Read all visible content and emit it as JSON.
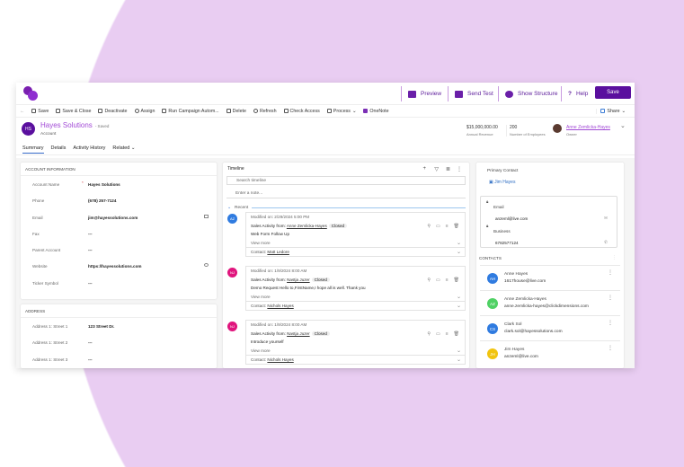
{
  "topbar": {
    "preview": "Preview",
    "send_test": "Send Test",
    "show_structure": "Show Structure",
    "help": "Help",
    "save": "Save"
  },
  "commands": [
    "Save",
    "Save & Close",
    "Deactivate",
    "Assign",
    "Run Campaign Autom...",
    "Delete",
    "Refresh",
    "Check Access",
    "Process",
    "OneNote"
  ],
  "share": "Share",
  "record": {
    "initials": "HS",
    "title": "Hayes Solutions",
    "saved": "- Saved",
    "type": "Account",
    "revenue": "$15,000,000.00",
    "revenue_label": "Annual Revenue",
    "employees": "200",
    "employees_label": "Number of Employees",
    "owner": "Anne Zemlicka-Hayes",
    "owner_label": "Owner"
  },
  "tabs": [
    "Summary",
    "Details",
    "Activity History",
    "Related"
  ],
  "account_info": {
    "title": "ACCOUNT INFORMATION",
    "fields": [
      {
        "label": "Account Name",
        "value": "Hayes Solutions"
      },
      {
        "label": "Phone",
        "value": "(678) 257-7124"
      },
      {
        "label": "Email",
        "value": "jim@hayessolutions.com"
      },
      {
        "label": "Fax",
        "value": "---"
      },
      {
        "label": "Parent Account",
        "value": "---"
      },
      {
        "label": "Website",
        "value": "https://hayessolutions.com"
      },
      {
        "label": "Ticker Symbol",
        "value": "---"
      }
    ]
  },
  "address": {
    "title": "ADDRESS",
    "fields": [
      {
        "label": "Address 1: Street 1",
        "value": "123 Street Dr."
      },
      {
        "label": "Address 1: Street 2",
        "value": "---"
      },
      {
        "label": "Address 1: Street 3",
        "value": "---"
      }
    ]
  },
  "timeline": {
    "title": "Timeline",
    "search_placeholder": "Search timeline",
    "note_placeholder": "Enter a note...",
    "group": "Recent",
    "view_more": "View more",
    "contact_label": "Contact:",
    "from_label": "Sales Activity from:",
    "items": [
      {
        "initials": "AZ",
        "color": "#2f7be0",
        "modified": "Modified on: 2/29/2024 5:00 PM",
        "from": "Anne Zemlicka-Hayes",
        "status": "Closed",
        "subject": "Web Form Follow Up",
        "contact": "Matt Ledore"
      },
      {
        "initials": "NJ",
        "color": "#e0157d",
        "modified": "Modified on: 1/9/2024 8:00 AM",
        "from": "Nastja Juzer",
        "status": "Closed",
        "subject": "Demo Request Hello to,FirstName,I hope all is well. Thank you",
        "contact": "Nichols Hayes"
      },
      {
        "initials": "NJ",
        "color": "#e0157d",
        "modified": "Modified on: 1/9/2024 8:00 AM",
        "from": "Nastja Juzer",
        "status": "Closed",
        "subject": "Introduce yourself",
        "contact": "Nichols Hayes"
      }
    ]
  },
  "primary_contact": {
    "label": "Primary Contact",
    "name": "Jim Hayes",
    "email_label": "Email",
    "email": "anzeml@live.com",
    "business_label": "Business",
    "business": "6782577124"
  },
  "contacts": {
    "title": "CONTACTS",
    "items": [
      {
        "initials": "AH",
        "color": "#2f7be0",
        "name": "Anne Hayes",
        "email": "1617house@live.com"
      },
      {
        "initials": "AZ",
        "color": "#4fd164",
        "name": "Anne Zemlicka-Hayes",
        "email": "anne.zemlicka-hayes@clickdimensions.com"
      },
      {
        "initials": "CS",
        "color": "#2f7be0",
        "name": "Clark Sol",
        "email": "clark.sol@hayessolutions.com"
      },
      {
        "initials": "JH",
        "color": "#f1c40f",
        "name": "Jim Hayes",
        "email": "anzeml@live.com"
      }
    ]
  }
}
